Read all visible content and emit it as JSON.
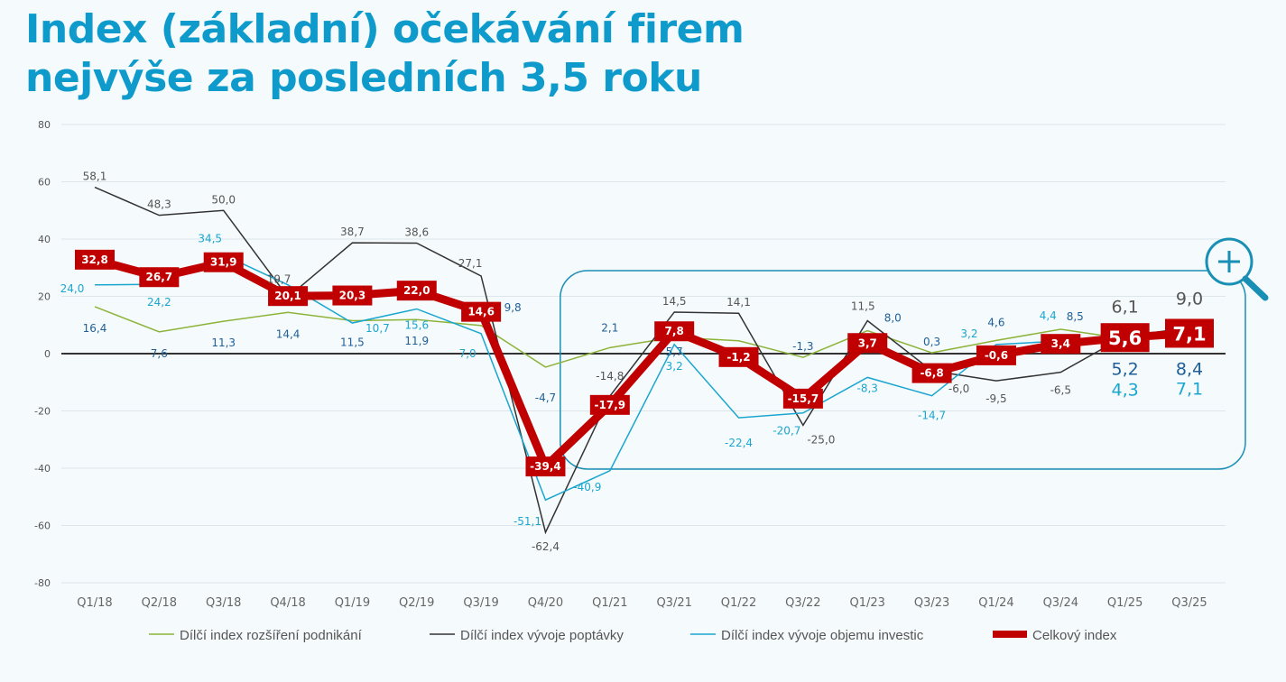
{
  "title_line1": "Index (základní) očekávání firem",
  "title_line2": "nejvýše za posledních 3,5 roku",
  "chart_data": {
    "type": "line",
    "categories": [
      "Q1/18",
      "Q2/18",
      "Q3/18",
      "Q4/18",
      "Q1/19",
      "Q2/19",
      "Q3/19",
      "Q4/20",
      "Q1/21",
      "Q3/21",
      "Q1/22",
      "Q3/22",
      "Q1/23",
      "Q3/23",
      "Q1/24",
      "Q3/24",
      "Q1/25",
      "Q3/25"
    ],
    "ylim": [
      -80,
      80
    ],
    "yticks": [
      -80,
      -60,
      -40,
      -20,
      0,
      20,
      40,
      60,
      80
    ],
    "grid": true,
    "legend_position": "bottom",
    "series": [
      {
        "name": "Dílčí index rozšíření podnikání",
        "color": "#8db33a",
        "label_color": "#1f5f97",
        "values": [
          16.4,
          7.6,
          11.3,
          14.4,
          11.5,
          11.9,
          9.8,
          -4.7,
          2.1,
          5.7,
          4.5,
          -1.3,
          8.0,
          0.3,
          4.6,
          8.5,
          5.2,
          8.4
        ],
        "labels": [
          "16,4",
          "7,6",
          "11,3",
          "14,4",
          "11,5",
          "11,9",
          "9,8",
          "-4,7",
          "2,1",
          "5,7",
          null,
          "-1,3",
          "8,0",
          "0,3",
          "4,6",
          "8,5",
          "5,2",
          "8,4"
        ]
      },
      {
        "name": "Dílčí index vývoje poptávky",
        "color": "#333333",
        "label_color": "#555555",
        "values": [
          58.1,
          48.3,
          50.0,
          19.7,
          38.7,
          38.6,
          27.1,
          -62.4,
          -14.8,
          14.5,
          14.1,
          -25.0,
          11.5,
          -6.0,
          -9.5,
          -6.5,
          6.1,
          9.0
        ],
        "labels": [
          "58,1",
          "48,3",
          "50,0",
          "19,7",
          "38,7",
          "38,6",
          "27,1",
          "-62,4",
          "-14,8",
          "14,5",
          "14,1",
          "-25,0",
          "11,5",
          "-6,0",
          "-9,5",
          "-6,5",
          "6,1",
          "9,0"
        ]
      },
      {
        "name": "Dílčí index vývoje objemu investic",
        "color": "#1aa6cf",
        "label_color": "#1aa6cf",
        "values": [
          24.0,
          24.2,
          34.5,
          24.0,
          10.7,
          15.6,
          7.0,
          -51.1,
          -40.9,
          3.2,
          -22.4,
          -20.7,
          -8.3,
          -14.7,
          3.2,
          4.4,
          4.3,
          7.1
        ],
        "labels": [
          "24,0",
          "24,2",
          "34,5",
          null,
          "10,7",
          "15,6",
          "7,0",
          "-51,1",
          "-40,9",
          "3,2",
          "-22,4",
          "-20,7",
          "-8,3",
          "-14,7",
          "3,2",
          "4,4",
          "4,3",
          "7,1"
        ]
      },
      {
        "name": "Celkový index",
        "color": "#c00000",
        "label_color": "#ffffff",
        "values": [
          32.8,
          26.7,
          31.9,
          20.1,
          20.3,
          22.0,
          14.6,
          -39.4,
          -17.9,
          7.8,
          -1.2,
          -15.7,
          3.7,
          -6.8,
          -0.6,
          3.4,
          5.6,
          7.1
        ],
        "labels": [
          "32,8",
          "26,7",
          "31,9",
          "20,1",
          "20,3",
          "22,0",
          "14,6",
          "-39,4",
          "-17,9",
          "7,8",
          "-1,2",
          "-15,7",
          "3,7",
          "-6,8",
          "-0,6",
          "3,4",
          "5,6",
          "7,1"
        ]
      }
    ],
    "highlight_range": [
      "Q1/21",
      "Q3/25"
    ],
    "highlight_color": "#1a8fb5",
    "icon": "zoom-in-magnifier-icon"
  }
}
